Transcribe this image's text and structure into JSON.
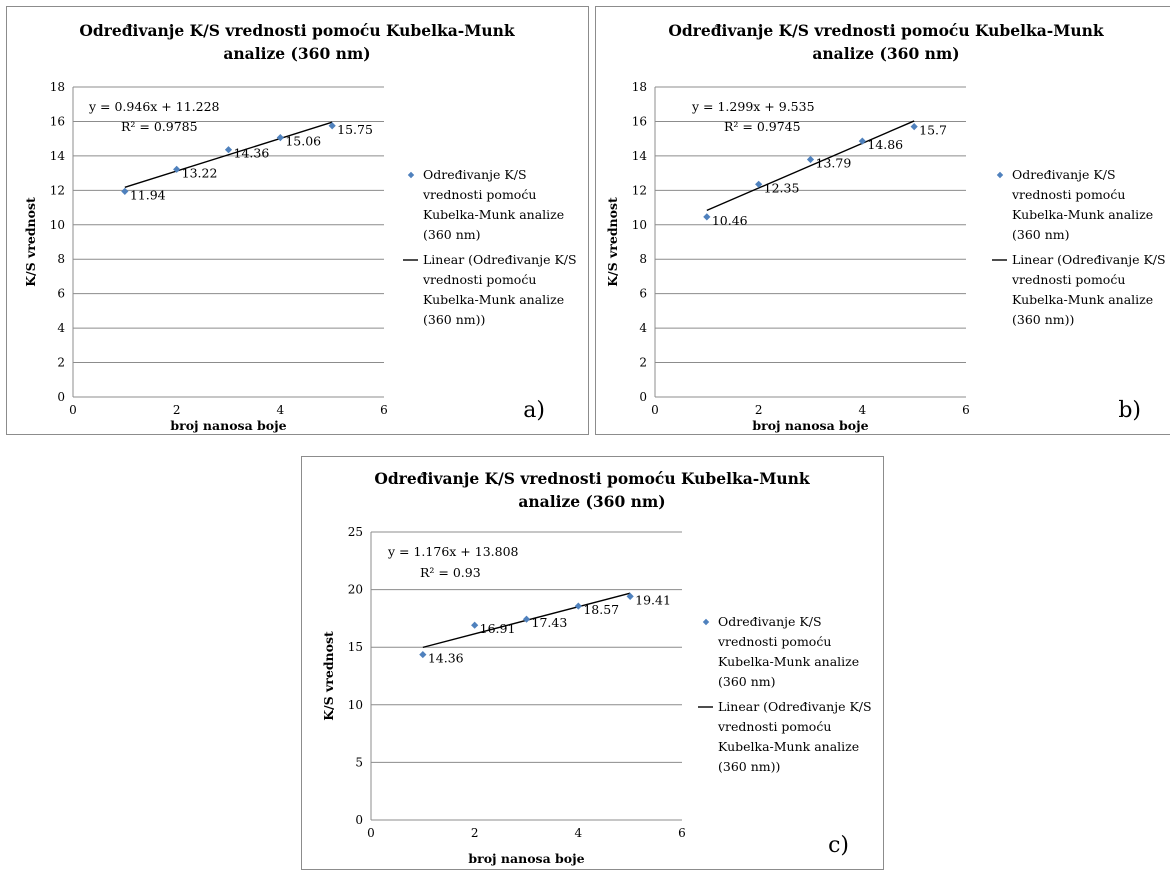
{
  "chart_data": [
    {
      "type": "scatter",
      "panel_label": "a)",
      "title": "Određivanje K/S vrednosti pomoću Kubelka-Munk analize (360 nm)",
      "xlabel": "broj nanosa boje",
      "ylabel": "K/S vrednost",
      "xlim": [
        0,
        6
      ],
      "ylim": [
        0,
        18
      ],
      "xticks": [
        0,
        2,
        4,
        6
      ],
      "yticks": [
        0,
        2,
        4,
        6,
        8,
        10,
        12,
        14,
        16,
        18
      ],
      "grid": "horizontal",
      "legend_position": "right",
      "series": [
        {
          "name": "Određivanje K/S vrednosti pomoću Kubelka-Munk analize (360 nm)",
          "marker": "diamond",
          "color": "#4f81bd",
          "x": [
            1,
            2,
            3,
            4,
            5
          ],
          "y": [
            11.94,
            13.22,
            14.36,
            15.06,
            15.75
          ],
          "labels": [
            "11.94",
            "13.22",
            "14.36",
            "15.06",
            "15.75"
          ]
        },
        {
          "name": "Linear (Određivanje K/S vrednosti pomoću Kubelka-Munk analize (360 nm))",
          "type": "trendline",
          "color": "#000000",
          "slope": 0.946,
          "intercept": 11.228,
          "equation": "y = 0.946x + 11.228",
          "r2": "R² = 0.9785"
        }
      ]
    },
    {
      "type": "scatter",
      "panel_label": "b)",
      "title": "Određivanje K/S vrednosti pomoću Kubelka-Munk analize (360 nm)",
      "xlabel": "broj nanosa boje",
      "ylabel": "K/S vrednost",
      "xlim": [
        0,
        6
      ],
      "ylim": [
        0,
        18
      ],
      "xticks": [
        0,
        2,
        4,
        6
      ],
      "yticks": [
        0,
        2,
        4,
        6,
        8,
        10,
        12,
        14,
        16,
        18
      ],
      "grid": "horizontal",
      "legend_position": "right",
      "series": [
        {
          "name": "Određivanje K/S vrednosti pomoću Kubelka-Munk analize (360 nm)",
          "marker": "diamond",
          "color": "#4f81bd",
          "x": [
            1,
            2,
            3,
            4,
            5
          ],
          "y": [
            10.46,
            12.35,
            13.79,
            14.86,
            15.7
          ],
          "labels": [
            "10.46",
            "12.35",
            "13.79",
            "14.86",
            "15.7"
          ]
        },
        {
          "name": "Linear (Određivanje K/S vrednosti pomoću Kubelka-Munk analize (360 nm))",
          "type": "trendline",
          "color": "#000000",
          "slope": 1.299,
          "intercept": 9.535,
          "equation": "y = 1.299x + 9.535",
          "r2": "R² = 0.9745"
        }
      ]
    },
    {
      "type": "scatter",
      "panel_label": "c)",
      "title": "Određivanje K/S vrednosti pomoću Kubelka-Munk analize (360 nm)",
      "xlabel": "broj nanosa boje",
      "ylabel": "K/S vrednost",
      "xlim": [
        0,
        6
      ],
      "ylim": [
        0,
        25
      ],
      "xticks": [
        0,
        2,
        4,
        6
      ],
      "yticks": [
        0,
        5,
        10,
        15,
        20,
        25
      ],
      "grid": "horizontal",
      "legend_position": "right",
      "series": [
        {
          "name": "Određivanje K/S vrednosti pomoću Kubelka-Munk analize (360 nm)",
          "marker": "diamond",
          "color": "#4f81bd",
          "x": [
            1,
            2,
            3,
            4,
            5
          ],
          "y": [
            14.36,
            16.91,
            17.43,
            18.57,
            19.41
          ],
          "labels": [
            "14.36",
            "16.91",
            "17.43",
            "18.57",
            "19.41"
          ]
        },
        {
          "name": "Linear (Određivanje K/S vrednosti pomoću Kubelka-Munk analize (360 nm))",
          "type": "trendline",
          "color": "#000000",
          "slope": 1.176,
          "intercept": 13.808,
          "equation": "y = 1.176x + 13.808",
          "r2": "R² = 0.93"
        }
      ]
    }
  ],
  "legend_lines": {
    "series": [
      "Određivanje K/S",
      "vrednosti pomoću",
      "Kubelka-Munk analize",
      "(360 nm)"
    ],
    "trend": [
      "Linear (Određivanje K/S",
      "vrednosti pomoću",
      "Kubelka-Munk analize",
      "(360 nm))"
    ]
  },
  "title_lines": [
    "Određivanje K/S vrednosti pomoću Kubelka-Munk",
    "analize (360 nm)"
  ]
}
